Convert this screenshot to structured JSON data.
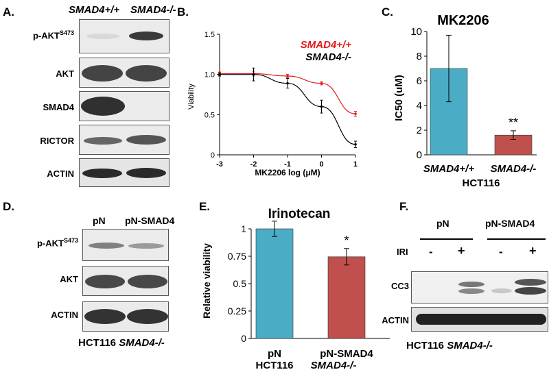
{
  "panelA": {
    "label": "A.",
    "col1": "SMAD4+/+",
    "col2": "SMAD4-/-",
    "rows": [
      {
        "base": "p-AKT",
        "sup": "S473"
      },
      {
        "base": "AKT",
        "sup": ""
      },
      {
        "base": "SMAD4",
        "sup": ""
      },
      {
        "base": "RICTOR",
        "sup": ""
      },
      {
        "base": "ACTIN",
        "sup": ""
      }
    ]
  },
  "panelB": {
    "label": "B.",
    "chart_data": {
      "type": "line",
      "xlabel": "MK2206 log  (μM)",
      "ylabel": "Viability",
      "xlim": [
        -3,
        1
      ],
      "ylim": [
        0,
        1.5
      ],
      "x_ticks": [
        "-3",
        "-2",
        "-1",
        "0",
        "1"
      ],
      "y_ticks": [
        "0",
        "0.5",
        "1.0",
        "1.5"
      ],
      "legend_position": "top-right",
      "series": [
        {
          "name": "SMAD4+/+",
          "color": "#e31a1c",
          "x": [
            -3,
            -2,
            -1,
            0,
            1
          ],
          "y": [
            1.01,
            1.01,
            0.98,
            0.89,
            0.51
          ],
          "err": [
            0.02,
            0.03,
            0.02,
            0.02,
            0.03
          ]
        },
        {
          "name": "SMAD4-/-",
          "color": "#000000",
          "x": [
            -3,
            -2,
            -1,
            0,
            1
          ],
          "y": [
            1.0,
            1.0,
            0.89,
            0.6,
            0.13
          ],
          "err": [
            0.02,
            0.08,
            0.06,
            0.08,
            0.04
          ]
        }
      ]
    }
  },
  "panelC": {
    "label": "C.",
    "chart_data": {
      "type": "bar",
      "title": "MK2206",
      "ylabel": "IC50 (uM)",
      "categories": [
        "SMAD4+/+",
        "SMAD4-/-"
      ],
      "values": [
        7.0,
        1.6
      ],
      "errors": [
        2.7,
        0.35
      ],
      "colors": [
        "#4aacc5",
        "#c0504d"
      ],
      "ylim": [
        0,
        10
      ],
      "y_ticks": [
        "0",
        "2",
        "4",
        "6",
        "8",
        "10"
      ],
      "annotations": [
        "",
        "**"
      ],
      "xlabel": "HCT116"
    }
  },
  "panelD": {
    "label": "D.",
    "col1": "pN",
    "col2": "pN-SMAD4",
    "rows": [
      {
        "base": "p-AKT",
        "sup": "S473"
      },
      {
        "base": "AKT",
        "sup": ""
      },
      {
        "base": "ACTIN",
        "sup": ""
      }
    ],
    "caption_a": "HCT116",
    "caption_b": "SMAD4-/-"
  },
  "panelE": {
    "label": "E.",
    "chart_data": {
      "type": "bar",
      "title": "Irinotecan",
      "ylabel": "Relative viability",
      "categories": [
        "pN",
        "pN-SMAD4"
      ],
      "values": [
        1.0,
        0.745
      ],
      "errors": [
        0.07,
        0.075
      ],
      "colors": [
        "#4aacc5",
        "#c0504d"
      ],
      "ylim": [
        0,
        1
      ],
      "y_ticks": [
        "0",
        "0.25",
        "0.5",
        "0.75",
        "1"
      ],
      "annotations": [
        "",
        "*"
      ],
      "xlabel_a": "HCT116",
      "xlabel_b": "SMAD4-/-"
    }
  },
  "panelF": {
    "label": "F.",
    "group1": "pN",
    "group2": "pN-SMAD4",
    "iri_label": "IRI",
    "treatments": [
      "-",
      "+",
      "-",
      "+"
    ],
    "rows": [
      "CC3",
      "ACTIN"
    ],
    "caption_a": "HCT116",
    "caption_b": "SMAD4-/-"
  }
}
